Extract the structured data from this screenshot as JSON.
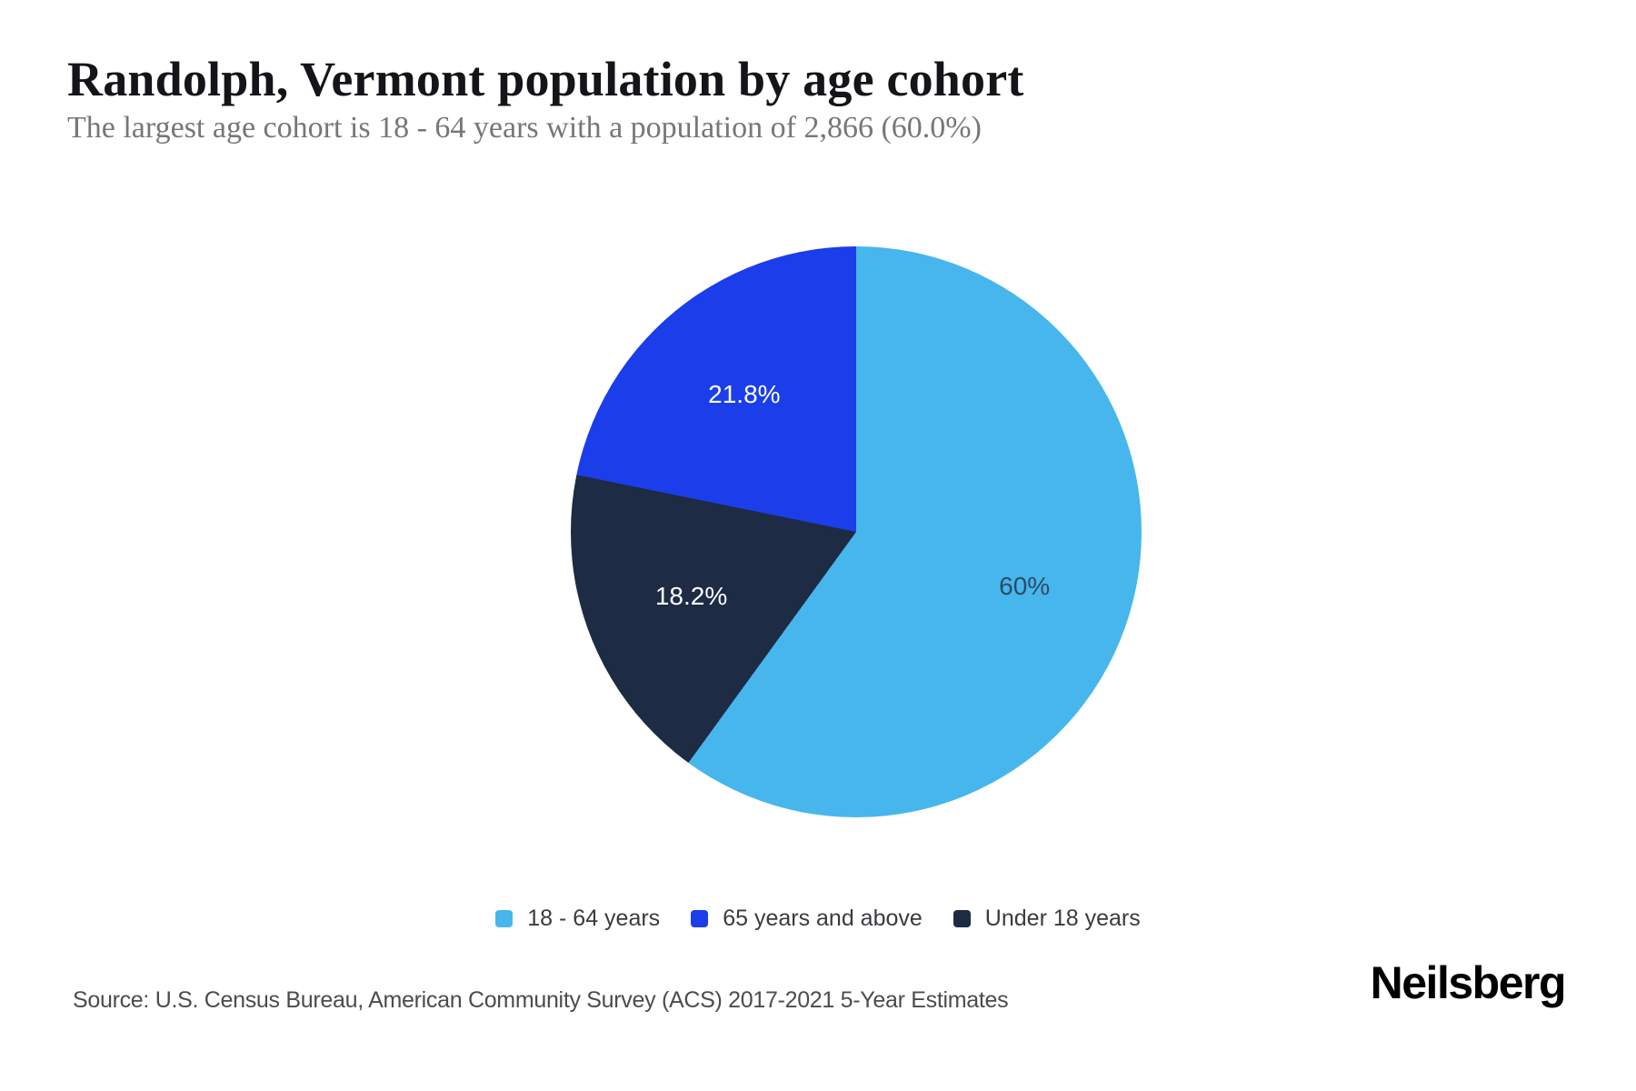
{
  "chart_data": {
    "type": "pie",
    "title": "Randolph, Vermont population by age cohort",
    "subtitle": "The largest age cohort is 18 - 64 years with a population of 2,866 (60.0%)",
    "source": "Source: U.S. Census Bureau, American Community Survey (ACS) 2017-2021 5-Year Estimates",
    "start_angle_deg": 0,
    "direction": "clockwise",
    "legend_position": "bottom",
    "slices": [
      {
        "label": "18 - 64 years",
        "value_pct": 60.0,
        "data_label": "60%",
        "color": "#47b6ed",
        "label_color": "#2c4b64"
      },
      {
        "label": "Under 18 years",
        "value_pct": 18.2,
        "data_label": "18.2%",
        "color": "#1d2b45",
        "label_color": "#ffffff"
      },
      {
        "label": "65 years and above",
        "value_pct": 21.8,
        "data_label": "21.8%",
        "color": "#1b3eea",
        "label_color": "#ffffff"
      }
    ],
    "legend_order": [
      0,
      2,
      1
    ]
  },
  "branding": {
    "logo_text": "Neilsberg"
  }
}
